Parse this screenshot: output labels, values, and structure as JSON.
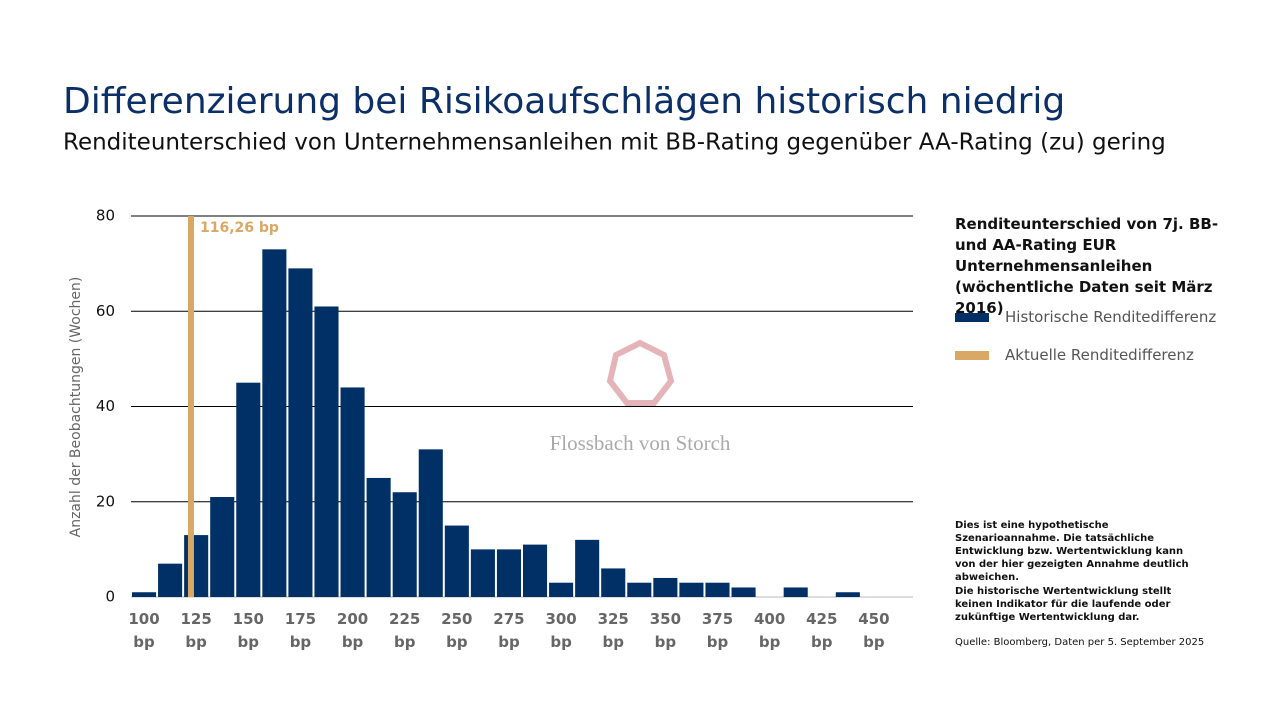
{
  "chart_data": {
    "type": "bar",
    "title": "Differenzierung bei Risikoaufschlägen historisch niedrig",
    "subtitle": "Renditeunterschied von Unternehmensanleihen mit BB-Rating gegenüber AA-Rating (zu) gering",
    "y_label": "Anzahl der Beobachtungen (Wochen)",
    "categories": [
      "100 bp",
      null,
      "125 bp",
      null,
      "150 bp",
      null,
      "175 bp",
      null,
      "200 bp",
      null,
      "225 bp",
      null,
      "250 bp",
      null,
      "275 bp",
      null,
      "300 bp",
      null,
      "325 bp",
      null,
      "350 bp",
      null,
      "375 bp",
      null,
      "400 bp",
      null,
      "425 bp",
      null,
      "450 bp",
      null
    ],
    "series": [
      {
        "name": "Historische Renditedifferenz",
        "color": "#003066",
        "values": [
          1,
          7,
          13,
          21,
          45,
          73,
          69,
          61,
          44,
          25,
          22,
          31,
          15,
          10,
          10,
          11,
          3,
          12,
          6,
          3,
          4,
          3,
          3,
          2,
          0,
          2,
          0,
          1,
          0,
          0
        ]
      }
    ],
    "current": {
      "name": "Aktuelle Renditedifferenz",
      "color": "#d9a865",
      "value": 116.26,
      "label": "116,26 bp"
    },
    "xlim": [
      87.5,
      462.5
    ],
    "ylim": [
      0,
      80
    ],
    "yticks": [
      0,
      20,
      40,
      60,
      80
    ],
    "grid": true,
    "legend_title": "Renditeunterschied von 7j. BB- und AA-Rating EUR Unternehmensanleihen (wöchentliche Daten seit März 2016)",
    "watermark": "Flossbach von Storch",
    "notes": [
      "Dies ist eine hypothetische Szenarioannahme. Die tatsächliche Entwicklung bzw. Wertentwicklung kann von der hier gezeigten Annahme deutlich abweichen.",
      "Die historische Wertentwicklung stellt keinen Indikator für die laufende oder zukünftige Wertentwicklung dar."
    ],
    "source": "Quelle: Bloomberg, Daten per 5. September 2025"
  }
}
